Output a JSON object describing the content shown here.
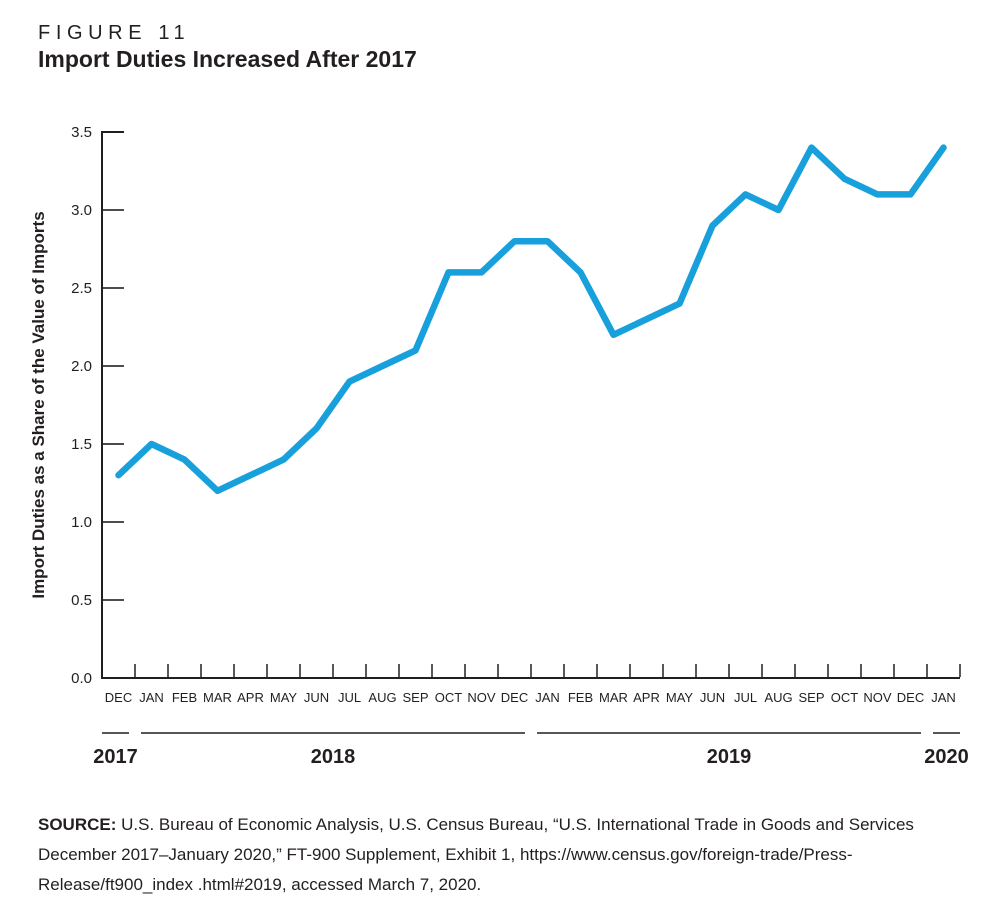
{
  "figure": {
    "label": "FIGURE 11",
    "title": "Import Duties Increased After 2017"
  },
  "chart_data": {
    "type": "line",
    "title": "Import Duties Increased After 2017",
    "xlabel": "",
    "ylabel": "Import Duties as a Share of the Value of Imports",
    "ylim": [
      0,
      3.5
    ],
    "ytick_labels": [
      "0.0",
      "0.5",
      "1.0",
      "1.5",
      "2.0",
      "2.5",
      "3.0",
      "3.5"
    ],
    "grid": false,
    "legend": "none",
    "line_color": "#17A0DC",
    "axis_color": "#231F20",
    "tick_color": "#4d4d4d",
    "categories": [
      "DEC",
      "JAN",
      "FEB",
      "MAR",
      "APR",
      "MAY",
      "JUN",
      "JUL",
      "AUG",
      "SEP",
      "OCT",
      "NOV",
      "DEC",
      "JAN",
      "FEB",
      "MAR",
      "APR",
      "MAY",
      "JUN",
      "JUL",
      "AUG",
      "SEP",
      "OCT",
      "NOV",
      "DEC",
      "JAN"
    ],
    "values": [
      1.3,
      1.5,
      1.4,
      1.2,
      1.3,
      1.4,
      1.6,
      1.9,
      2.0,
      2.1,
      2.6,
      2.6,
      2.8,
      2.8,
      2.6,
      2.2,
      2.3,
      2.4,
      2.9,
      3.1,
      3.0,
      3.4,
      3.2,
      3.1,
      3.1,
      3.4
    ],
    "year_groups": [
      {
        "label": "2017",
        "start": 0,
        "end": 0
      },
      {
        "label": "2018",
        "start": 1,
        "end": 12
      },
      {
        "label": "2019",
        "start": 13,
        "end": 24
      },
      {
        "label": "2020",
        "start": 25,
        "end": 25
      }
    ]
  },
  "source": {
    "label": "SOURCE:",
    "text": " U.S. Bureau of Economic Analysis, U.S. Census Bureau, “U.S. International Trade in Goods and Services December 2017–January 2020,” FT-900 Supplement, Exhibit 1, https://www.census.gov/foreign-trade/Press-Release/ft900_index .html#2019, accessed March 7, 2020."
  }
}
